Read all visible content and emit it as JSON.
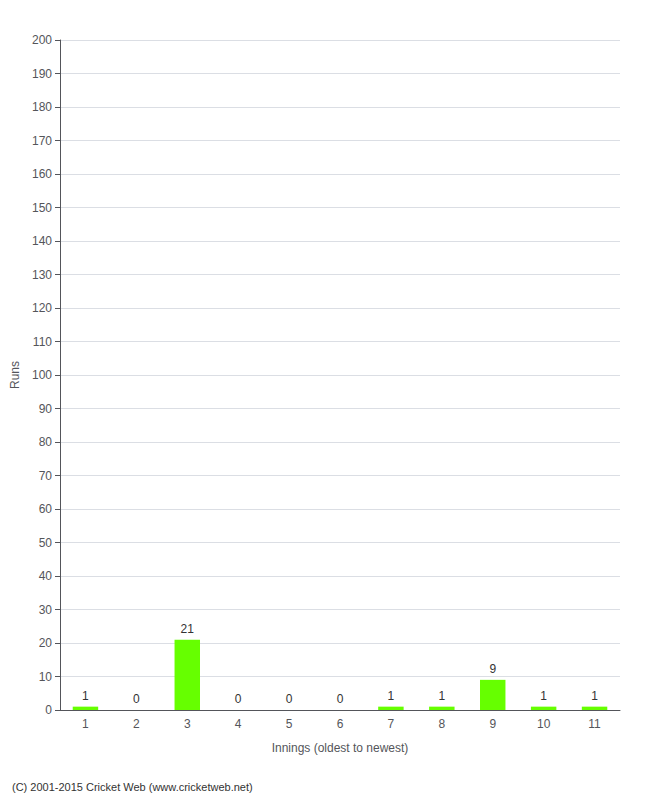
{
  "chart_data": {
    "type": "bar",
    "xlabel": "Innings (oldest to newest)",
    "ylabel": "Runs",
    "categories": [
      "1",
      "2",
      "3",
      "4",
      "5",
      "6",
      "7",
      "8",
      "9",
      "10",
      "11"
    ],
    "values": [
      1,
      0,
      21,
      0,
      0,
      0,
      1,
      1,
      9,
      1,
      1
    ],
    "color": "#66ff00",
    "ylim": [
      0,
      200
    ],
    "yticks": [
      0,
      10,
      20,
      30,
      40,
      50,
      60,
      70,
      80,
      90,
      100,
      110,
      120,
      130,
      140,
      150,
      160,
      170,
      180,
      190,
      200
    ],
    "grid": true,
    "data_labels": true,
    "annotations": [
      "(C) 2001-2015 Cricket Web (www.cricketweb.net)"
    ]
  }
}
